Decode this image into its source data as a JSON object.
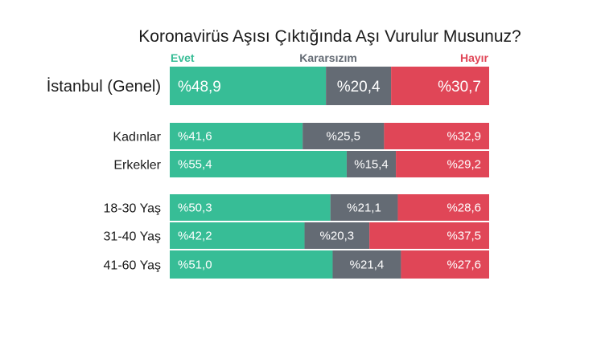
{
  "chart_data": {
    "type": "bar",
    "orientation": "horizontal",
    "stacked": true,
    "normalized": true,
    "title": "Koronavirüs Aşısı Çıktığında Aşı Vurulur Musunuz?",
    "xlim": [
      0,
      100
    ],
    "legend_placement": "top",
    "categories": [
      "İstanbul (Genel)",
      "Kadınlar",
      "Erkekler",
      "18-30 Yaş",
      "31-40 Yaş",
      "41-60 Yaş"
    ],
    "series": [
      {
        "name": "Evet",
        "color": "#37bd96",
        "values": [
          48.9,
          41.6,
          55.4,
          50.3,
          42.2,
          51.0
        ],
        "labels": [
          "%48,9",
          "%41,6",
          "%55,4",
          "%50,3",
          "%42,2",
          "%51,0"
        ]
      },
      {
        "name": "Kararsızım",
        "color": "#646b74",
        "values": [
          20.4,
          25.5,
          15.4,
          21.1,
          20.3,
          21.4
        ],
        "labels": [
          "%20,4",
          "%25,5",
          "%15,4",
          "%21,1",
          "%20,3",
          "%21,4"
        ]
      },
      {
        "name": "Hayır",
        "color": "#e04657",
        "values": [
          30.7,
          32.9,
          29.2,
          28.6,
          37.5,
          27.6
        ],
        "labels": [
          "%30,7",
          "%32,9",
          "%29,2",
          "%28,6",
          "%37,5",
          "%27,6"
        ]
      }
    ]
  }
}
